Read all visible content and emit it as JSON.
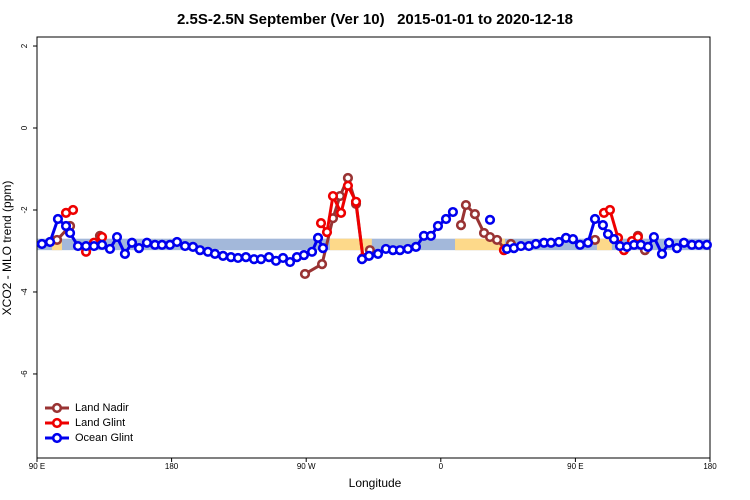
{
  "chart_data": {
    "type": "line",
    "title": "2.5S-2.5N September (Ver 10)   2015-01-01 to 2020-12-18",
    "xlabel": "Longitude",
    "ylabel": "XCO2 - MLO trend (ppm)",
    "xlim": [
      90,
      540
    ],
    "ylim": [
      -8.05,
      2.22
    ],
    "xticks": [
      {
        "value": 90,
        "label": "90 E"
      },
      {
        "value": 180,
        "label": "180"
      },
      {
        "value": 270,
        "label": "90 W"
      },
      {
        "value": 360,
        "label": "0"
      },
      {
        "value": 450,
        "label": "90 E"
      },
      {
        "value": 540,
        "label": "180"
      }
    ],
    "yticks": [
      2,
      0,
      -2,
      -4,
      -6
    ],
    "grid": false,
    "legend": "bottom-left",
    "background_band": {
      "y": [
        -2.98,
        -2.7
      ],
      "color": "#a3b8da"
    },
    "land_spans": {
      "color": "#fdd98a",
      "x": [
        [
          100,
          106.7
        ],
        [
          285.9,
          313.9
        ],
        [
          369.5,
          402.9
        ],
        [
          464.4,
          474.4
        ]
      ]
    },
    "series": [
      {
        "name": "Land Nadir",
        "color": "#993333",
        "x": [
          103.4,
          112.1,
          null,
          132.1,
          null,
          269.2,
          280.6,
          287.9,
          292.6,
          297.9,
          303.3,
          308.0,
          312.6,
          null,
          373.5,
          376.8,
          382.8,
          388.9,
          392.9,
          397.6,
          402.9,
          406.9,
          null,
          463.1,
          null,
          491.8,
          496.5
        ],
        "values": [
          -2.73,
          -2.39,
          null,
          -2.63,
          null,
          -3.56,
          -3.32,
          -2.2,
          -1.66,
          -1.22,
          -1.85,
          -3.17,
          -2.98,
          null,
          -2.37,
          -1.88,
          -2.1,
          -2.56,
          -2.66,
          -2.73,
          -2.95,
          -2.83,
          null,
          -2.73,
          null,
          -2.63,
          -2.98
        ]
      },
      {
        "name": "Land Glint",
        "color": "#ee0000",
        "x": [
          109.4,
          114.1,
          null,
          122.8,
          128.1,
          133.5,
          null,
          279.9,
          283.9,
          287.9,
          293.3,
          297.9,
          303.3,
          308.0,
          null,
          402.2,
          null,
          469.1,
          473.1,
          478.5,
          482.5,
          487.8,
          491.8
        ],
        "values": [
          -2.07,
          -2.0,
          null,
          -3.02,
          -2.8,
          -2.66,
          null,
          -2.32,
          -2.54,
          -1.66,
          -2.07,
          -1.41,
          -1.8,
          -3.17,
          null,
          -2.98,
          null,
          -2.07,
          -2.0,
          -2.68,
          -2.98,
          -2.76,
          -2.66
        ]
      },
      {
        "name": "Ocean Glint",
        "color": "#0000ee",
        "x": [
          93.3,
          98.7,
          104.0,
          109.4,
          112.1,
          117.4,
          122.8,
          128.1,
          133.5,
          138.8,
          143.5,
          148.8,
          153.5,
          158.2,
          163.5,
          168.9,
          173.6,
          178.9,
          183.6,
          189.0,
          194.3,
          199.0,
          204.3,
          209.0,
          214.4,
          219.7,
          224.4,
          229.7,
          235.1,
          239.8,
          245.1,
          249.8,
          254.5,
          259.2,
          263.8,
          268.5,
          273.9,
          277.9,
          281.2,
          null,
          307.3,
          312.0,
          318.0,
          323.3,
          328.0,
          332.7,
          338.0,
          343.4,
          348.7,
          353.4,
          358.1,
          363.5,
          368.1,
          null,
          392.9,
          null,
          404.2,
          408.9,
          413.6,
          418.9,
          423.6,
          429.0,
          433.7,
          439.0,
          443.7,
          448.4,
          453.1,
          458.4,
          463.1,
          468.4,
          471.8,
          475.8,
          479.8,
          484.5,
          489.2,
          493.8,
          498.5,
          502.5,
          507.9,
          512.6,
          517.9,
          522.6,
          527.9,
          532.6,
          537.9
        ],
        "values": [
          -2.83,
          -2.78,
          -2.22,
          -2.39,
          -2.56,
          -2.88,
          -2.88,
          -2.88,
          -2.85,
          -2.95,
          -2.66,
          -3.07,
          -2.8,
          -2.93,
          -2.8,
          -2.85,
          -2.85,
          -2.85,
          -2.78,
          -2.88,
          -2.9,
          -2.98,
          -3.02,
          -3.07,
          -3.12,
          -3.15,
          -3.17,
          -3.15,
          -3.2,
          -3.2,
          -3.15,
          -3.24,
          -3.17,
          -3.27,
          -3.15,
          -3.1,
          -3.02,
          -2.68,
          -2.93,
          null,
          -3.2,
          -3.12,
          -3.07,
          -2.95,
          -2.98,
          -2.98,
          -2.95,
          -2.9,
          -2.63,
          -2.63,
          -2.39,
          -2.22,
          -2.05,
          null,
          -2.24,
          null,
          -2.95,
          -2.93,
          -2.88,
          -2.88,
          -2.83,
          -2.8,
          -2.8,
          -2.78,
          -2.68,
          -2.71,
          -2.85,
          -2.8,
          -2.22,
          -2.37,
          -2.59,
          -2.71,
          -2.88,
          -2.9,
          -2.85,
          -2.85,
          -2.9,
          -2.66,
          -3.07,
          -2.8,
          -2.93,
          -2.8,
          -2.85,
          -2.85,
          -2.85
        ]
      }
    ]
  }
}
